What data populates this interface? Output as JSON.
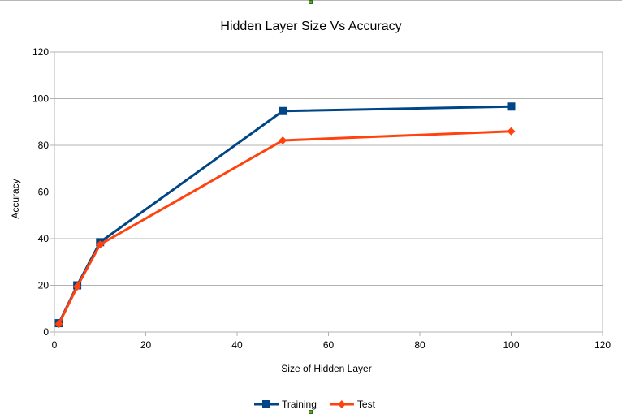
{
  "chart_data": {
    "type": "line",
    "title": "Hidden Layer Size Vs Accuracy",
    "xlabel": "Size of Hidden Layer",
    "ylabel": "Accuracy",
    "xlim": [
      0,
      120
    ],
    "ylim": [
      0,
      120
    ],
    "xticks": [
      0,
      20,
      40,
      60,
      80,
      100,
      120
    ],
    "yticks": [
      0,
      20,
      40,
      60,
      80,
      100,
      120
    ],
    "grid": true,
    "legend_position": "bottom",
    "series": [
      {
        "name": "Training",
        "color": "#004586",
        "marker": "square",
        "x": [
          1,
          5,
          10,
          50,
          100
        ],
        "y": [
          3.8,
          20,
          38.5,
          94.7,
          96.6
        ]
      },
      {
        "name": "Test",
        "color": "#ff420e",
        "marker": "diamond",
        "x": [
          1,
          5,
          10,
          50,
          100
        ],
        "y": [
          3.5,
          19.5,
          37.5,
          82.1,
          86.0
        ]
      }
    ]
  }
}
